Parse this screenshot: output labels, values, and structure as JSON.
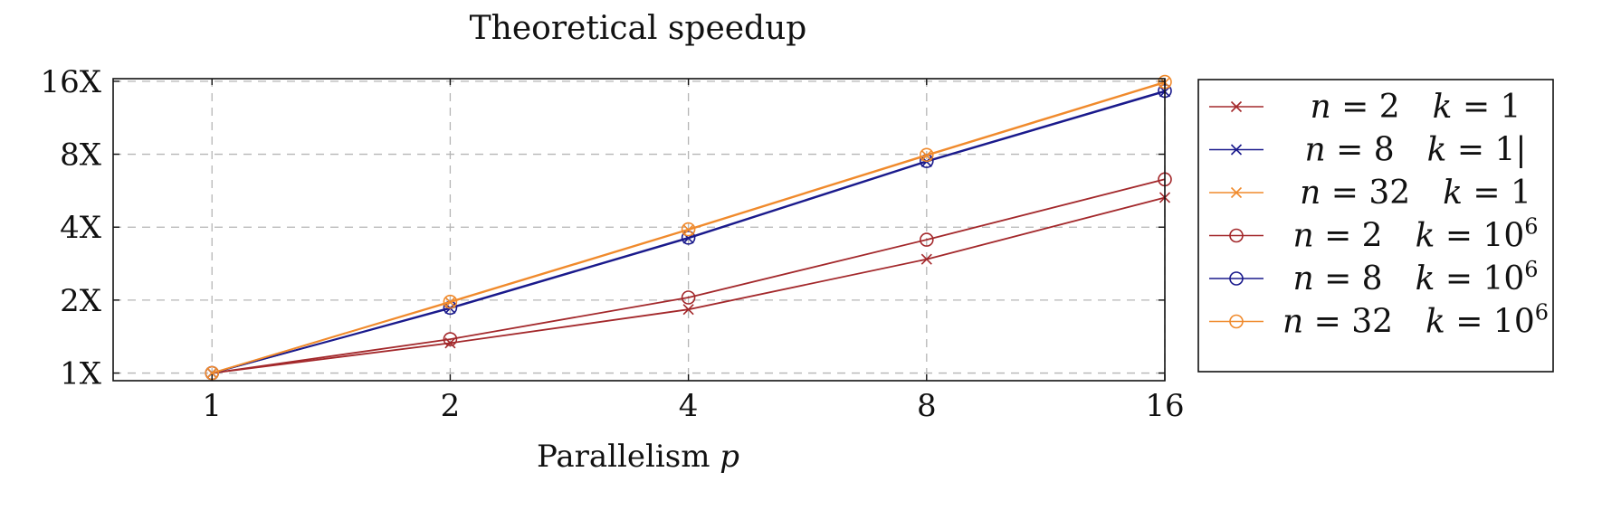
{
  "chart_data": {
    "type": "line",
    "title": "Theoretical speedup",
    "xlabel": "Parallelism",
    "xlabel_var": "p",
    "x": [
      1,
      2,
      4,
      8,
      16
    ],
    "x_tick_labels": [
      "1",
      "2",
      "4",
      "8",
      "16"
    ],
    "x_scale": "log2",
    "y_scale": "log2",
    "y_ticks": [
      1,
      2,
      4,
      8,
      16
    ],
    "y_tick_labels": [
      "1X",
      "2X",
      "4X",
      "8X",
      "16X"
    ],
    "ylim": [
      0.93,
      16.4
    ],
    "xlim": [
      0.75,
      16
    ],
    "grid": true,
    "legend_position": "right-outside",
    "series": [
      {
        "var_n": "n",
        "n": "2",
        "var_k": "k",
        "k": "1",
        "k_exp": "",
        "values": [
          1,
          1.33,
          1.83,
          2.95,
          5.3
        ],
        "color": "#a3282b",
        "marker": "x"
      },
      {
        "var_n": "n",
        "n": "8",
        "var_k": "k",
        "k": "1|",
        "k_exp": "",
        "values": [
          1,
          1.85,
          3.6,
          7.45,
          14.5
        ],
        "color": "#1a1a8c",
        "marker": "x"
      },
      {
        "var_n": "n",
        "n": "32",
        "var_k": "k",
        "k": "1",
        "k_exp": "",
        "values": [
          1,
          1.96,
          3.9,
          7.9,
          15.8
        ],
        "color": "#f08a2c",
        "marker": "x"
      },
      {
        "var_n": "n",
        "n": "2",
        "var_k": "k",
        "k": "10",
        "k_exp": "6",
        "values": [
          1,
          1.38,
          2.05,
          3.55,
          6.3
        ],
        "color": "#a3282b",
        "marker": "o"
      },
      {
        "var_n": "n",
        "n": "8",
        "var_k": "k",
        "k": "10",
        "k_exp": "6",
        "values": [
          1,
          1.86,
          3.62,
          7.5,
          14.6
        ],
        "color": "#1a1a8c",
        "marker": "o"
      },
      {
        "var_n": "n",
        "n": "32",
        "var_k": "k",
        "k": "10",
        "k_exp": "6",
        "values": [
          1,
          1.97,
          3.92,
          7.95,
          15.9
        ],
        "color": "#f08a2c",
        "marker": "o"
      }
    ]
  }
}
